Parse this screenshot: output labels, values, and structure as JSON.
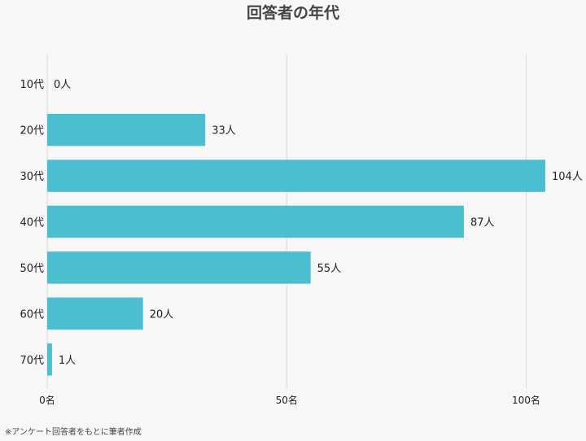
{
  "chart_data": {
    "type": "bar",
    "orientation": "horizontal",
    "title": "回答者の年代",
    "categories": [
      "10代",
      "20代",
      "30代",
      "40代",
      "50代",
      "60代",
      "70代"
    ],
    "values": [
      0,
      33,
      104,
      87,
      55,
      20,
      1
    ],
    "value_labels": [
      "0人",
      "33人",
      "104人",
      "87人",
      "55人",
      "20人",
      "1人"
    ],
    "x_ticks": [
      0,
      50,
      100
    ],
    "x_tick_labels": [
      "0名",
      "50名",
      "100名"
    ],
    "xlim": [
      0,
      104
    ],
    "grid": true,
    "bar_color": "#4bbfd0",
    "footnote": "※アンケート回答者をもとに筆者作成"
  }
}
